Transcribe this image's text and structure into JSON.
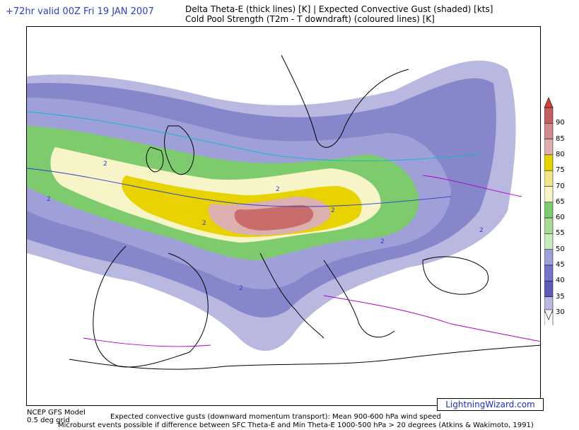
{
  "header": {
    "valid_line": "+72hr valid 00Z Fri 19 JAN 2007",
    "title_line1": "Delta Theta-E (thick lines) [K]  |  Expected Convective Gust (shaded) [kts]",
    "title_line2": "Cold Pool Strength (T2m - T downdraft) (coloured lines) [K]"
  },
  "legend": {
    "unit": "kts",
    "levels": [
      "90",
      "85",
      "80",
      "75",
      "70",
      "65",
      "60",
      "55",
      "50",
      "45",
      "40",
      "35",
      "30"
    ],
    "colors": [
      "#c46060",
      "#d48a8a",
      "#dcb0ae",
      "#e8d300",
      "#f1e58b",
      "#f7f4c8",
      "#7ecb6e",
      "#a8dc95",
      "#c8ebbc",
      "#a0a0d8",
      "#7474c8",
      "#5c5cb8",
      "#b8b8e0",
      "#ffffff"
    ]
  },
  "map": {
    "contour_label": "2"
  },
  "credit": "LightningWizard.com",
  "footer": {
    "model_line1": "NCEP GFS Model",
    "model_line2": "0.5 deg grid",
    "note_line1": "Expected convective gusts (downward momentum transport): Mean 900-600 hPa wind speed",
    "note_line2": "Microburst events possible if difference between SFC Theta-E and Min Theta-E 1000-500 hPa > 20 degrees (Atkins & Wakimoto, 1991)"
  }
}
